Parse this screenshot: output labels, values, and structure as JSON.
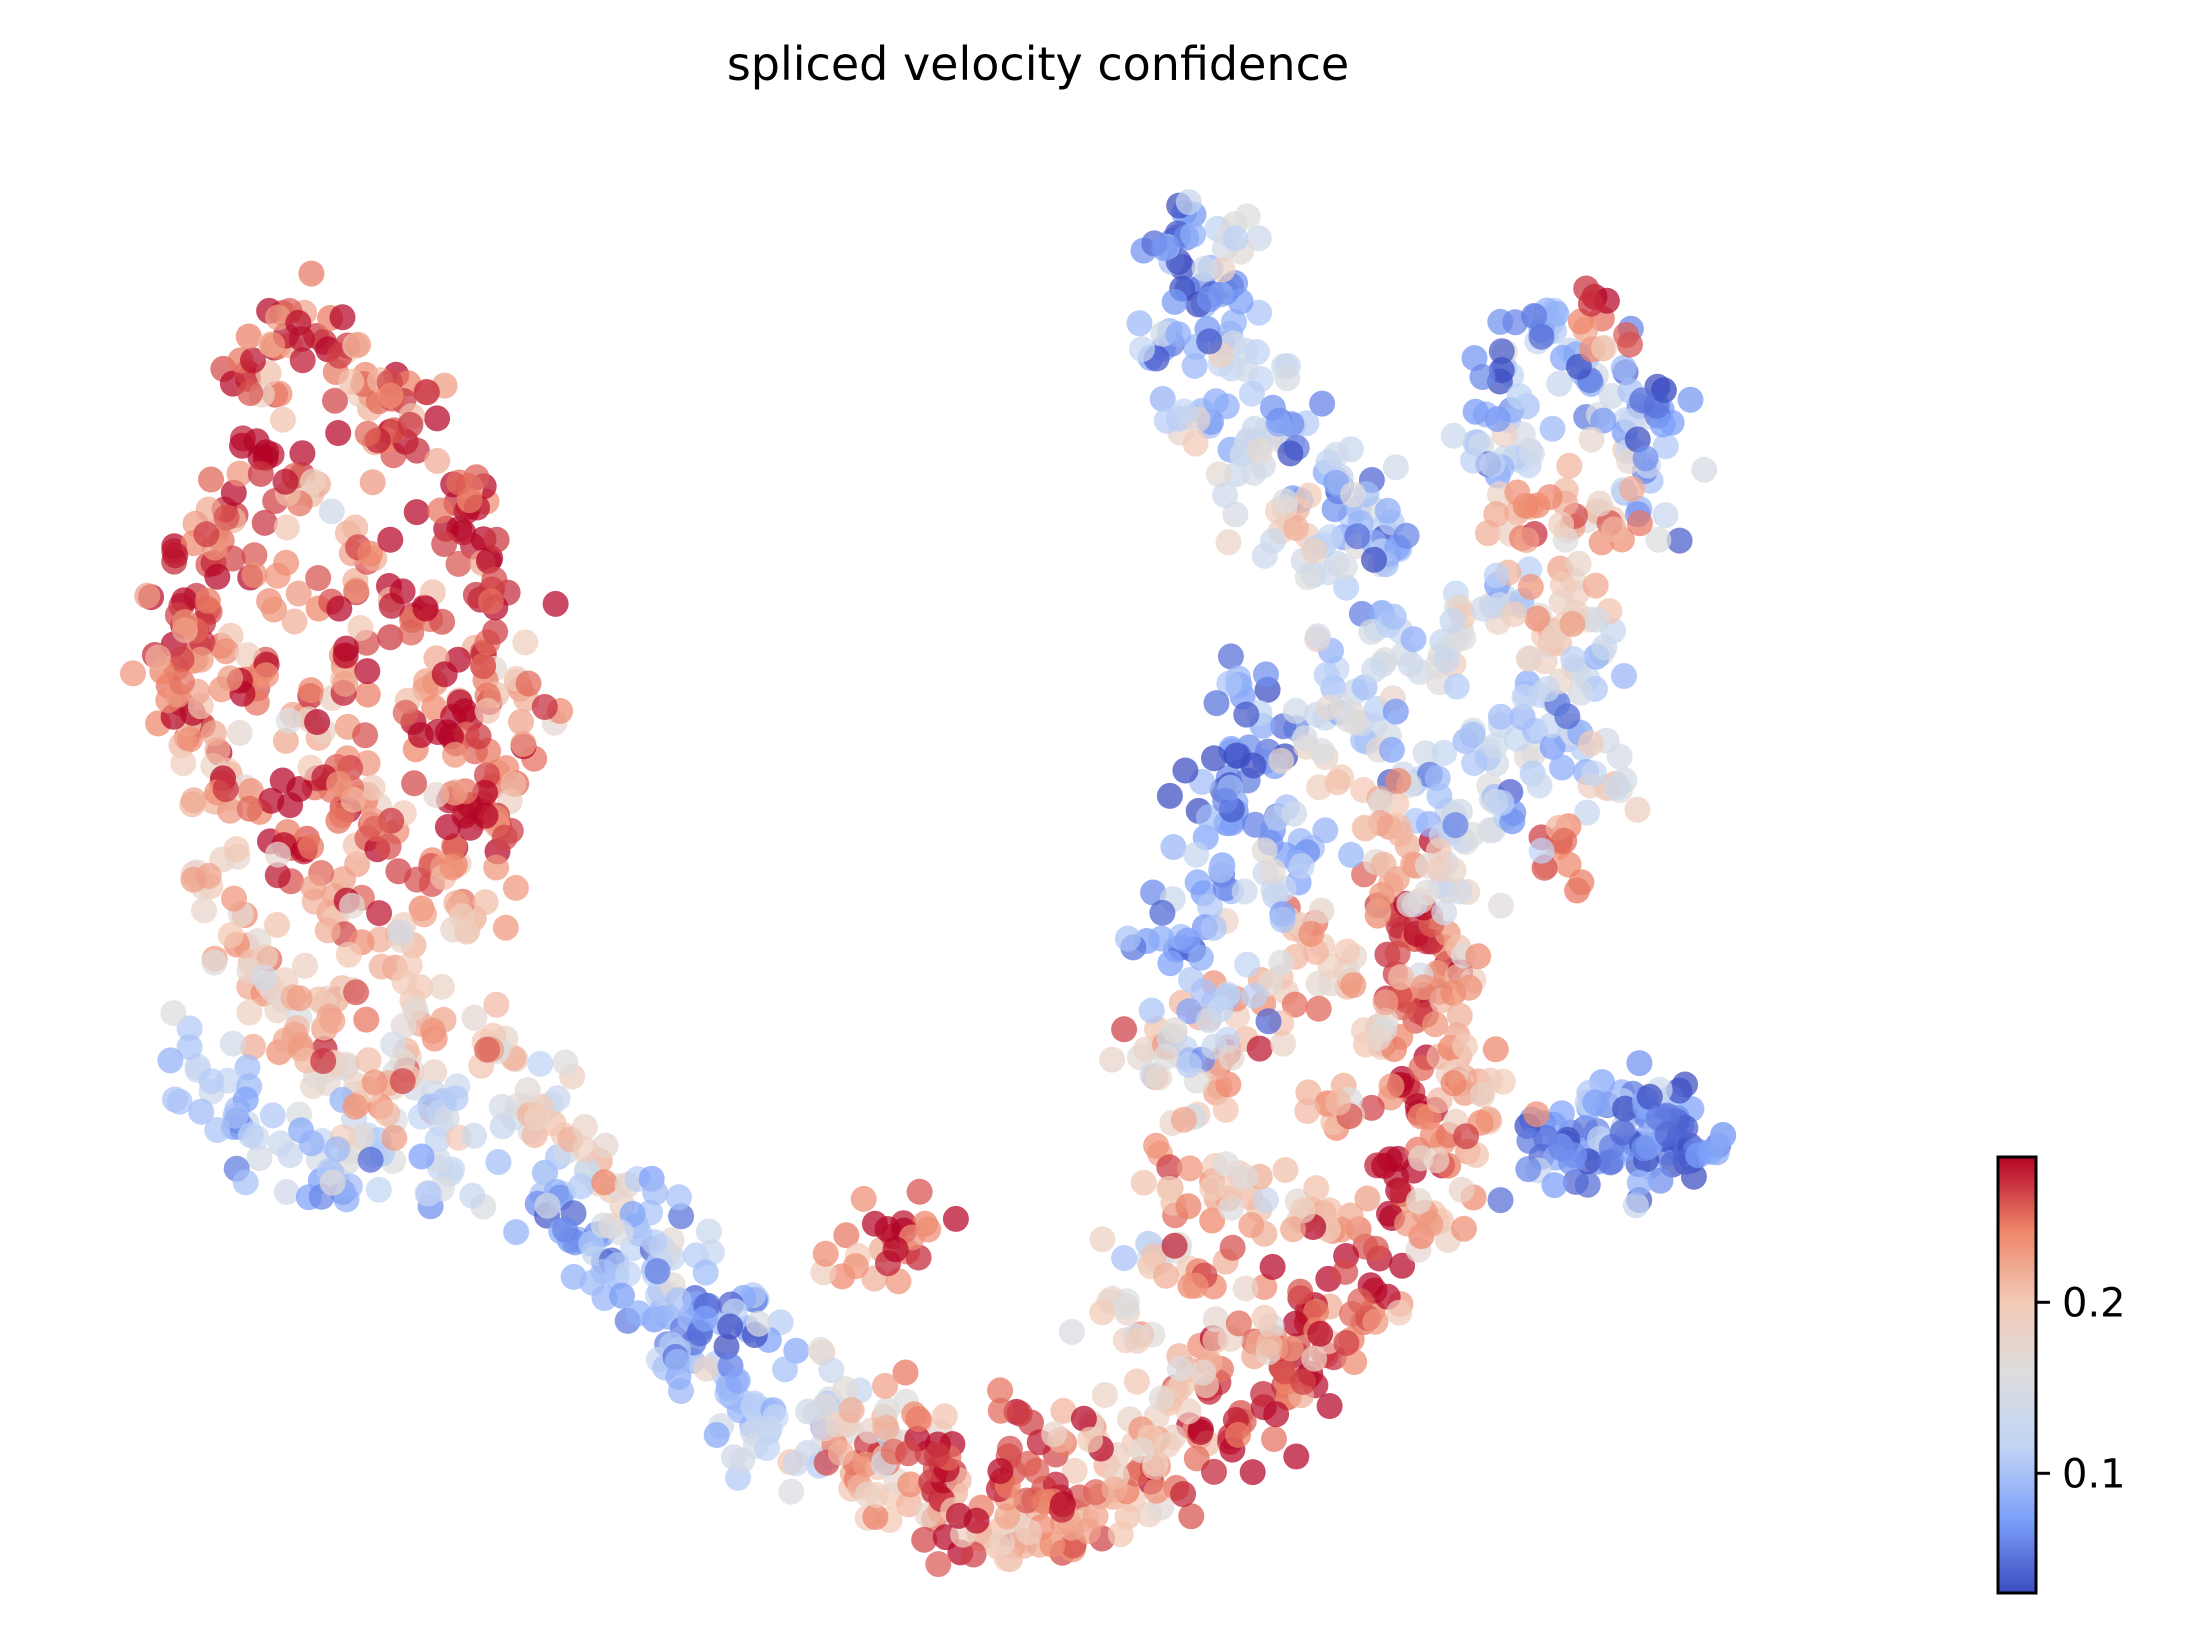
{
  "chart_data": {
    "type": "scatter",
    "title": "spliced velocity confidence",
    "xlabel": "",
    "ylabel": "",
    "axes_visible": false,
    "grid": false,
    "xlim": [
      0,
      100
    ],
    "ylim": [
      0,
      100
    ],
    "colormap": "coolwarm",
    "colorbar": {
      "placement": "bottom-right",
      "range": [
        0.03,
        0.285
      ],
      "ticks": [
        {
          "value": 0.1,
          "label": "0.1"
        },
        {
          "value": 0.2,
          "label": "0.2"
        }
      ],
      "stops": [
        "#3b4cc0",
        "#7b9ff9",
        "#c0d4f5",
        "#dddddd",
        "#f2cbb7",
        "#ee8468",
        "#b40426"
      ]
    },
    "clusters": [
      {
        "name": "",
        "points": [
          [
            3.4,
            68.3,
            0.27
          ],
          [
            4.4,
            59.8,
            0.26
          ],
          [
            5.6,
            65.4,
            0.25
          ],
          [
            6.4,
            74.9,
            0.27
          ],
          [
            8.4,
            79.3,
            0.28
          ],
          [
            9.9,
            69.2,
            0.23
          ],
          [
            11.0,
            58.7,
            0.22
          ],
          [
            12.4,
            63.9,
            0.24
          ],
          [
            13.7,
            71.5,
            0.26
          ],
          [
            15.0,
            80.9,
            0.25
          ],
          [
            16.2,
            67.6,
            0.27
          ],
          [
            17.4,
            60.9,
            0.24
          ],
          [
            18.8,
            73.9,
            0.28
          ],
          [
            20.1,
            64.9,
            0.26
          ],
          [
            21.4,
            56.5,
            0.24
          ],
          [
            7.1,
            84.8,
            0.27
          ],
          [
            9.0,
            89.6,
            0.26
          ],
          [
            11.3,
            87.5,
            0.27
          ],
          [
            13.6,
            85.1,
            0.24
          ],
          [
            15.7,
            83.2,
            0.27
          ],
          [
            2.7,
            62.5,
            0.25
          ],
          [
            6.0,
            56.3,
            0.2
          ],
          [
            7.6,
            62.3,
            0.26
          ],
          [
            12.6,
            54.2,
            0.23
          ],
          [
            18.6,
            58.3,
            0.27
          ],
          [
            20.6,
            69.5,
            0.27
          ],
          [
            22.0,
            62.8,
            0.22
          ],
          [
            19.3,
            77.0,
            0.26
          ],
          [
            10.6,
            76.4,
            0.21
          ],
          [
            4.9,
            71.3,
            0.26
          ]
        ]
      },
      {
        "name": "",
        "points": [
          [
            5.0,
            47.9,
            0.2
          ],
          [
            7.0,
            43.6,
            0.22
          ],
          [
            9.5,
            50.7,
            0.26
          ],
          [
            11.6,
            46.0,
            0.23
          ],
          [
            13.9,
            52.4,
            0.26
          ],
          [
            15.4,
            44.5,
            0.21
          ],
          [
            17.3,
            49.8,
            0.24
          ],
          [
            19.6,
            45.6,
            0.22
          ],
          [
            21.0,
            52.3,
            0.25
          ],
          [
            8.2,
            40.8,
            0.19
          ],
          [
            12.3,
            40.5,
            0.21
          ],
          [
            16.2,
            39.6,
            0.2
          ],
          [
            6.1,
            53.4,
            0.23
          ],
          [
            18.5,
            54.3,
            0.27
          ],
          [
            10.8,
            55.1,
            0.25
          ]
        ]
      },
      {
        "name": "",
        "points": [
          [
            4.3,
            34.8,
            0.12
          ],
          [
            6.5,
            31.7,
            0.1
          ],
          [
            8.9,
            29.2,
            0.13
          ],
          [
            11.5,
            33.6,
            0.17
          ],
          [
            13.7,
            29.8,
            0.12
          ],
          [
            16.0,
            35.5,
            0.19
          ],
          [
            17.8,
            30.6,
            0.13
          ],
          [
            20.2,
            36.6,
            0.2
          ],
          [
            22.6,
            31.8,
            0.14
          ],
          [
            9.8,
            37.6,
            0.21
          ],
          [
            14.9,
            33.6,
            0.22
          ],
          [
            12.0,
            26.7,
            0.11
          ],
          [
            18.4,
            27.3,
            0.12
          ]
        ]
      },
      {
        "name": "",
        "points": [
          [
            23.4,
            25.5,
            0.1
          ],
          [
            25.4,
            22.2,
            0.08
          ],
          [
            27.5,
            19.5,
            0.09
          ],
          [
            29.6,
            16.4,
            0.07
          ],
          [
            31.7,
            13.4,
            0.09
          ],
          [
            33.9,
            10.8,
            0.08
          ],
          [
            35.9,
            8.2,
            0.11
          ],
          [
            38.1,
            6.7,
            0.13
          ],
          [
            24.6,
            29.8,
            0.2
          ],
          [
            26.5,
            26.3,
            0.18
          ],
          [
            30.6,
            20.9,
            0.12
          ],
          [
            34.8,
            15.6,
            0.1
          ],
          [
            39.3,
            10.6,
            0.15
          ],
          [
            28.6,
            23.2,
            0.09
          ],
          [
            32.6,
            17.4,
            0.06
          ]
        ]
      },
      {
        "name": "",
        "points": [
          [
            40.6,
            5.2,
            0.22
          ],
          [
            42.8,
            3.6,
            0.2
          ],
          [
            45.1,
            1.9,
            0.25
          ],
          [
            47.6,
            0.9,
            0.23
          ],
          [
            50.0,
            0.3,
            0.22
          ],
          [
            52.6,
            1.7,
            0.24
          ],
          [
            55.0,
            3.5,
            0.22
          ],
          [
            57.5,
            5.7,
            0.23
          ],
          [
            59.8,
            7.9,
            0.25
          ],
          [
            62.1,
            9.6,
            0.26
          ],
          [
            64.5,
            11.6,
            0.27
          ],
          [
            66.8,
            13.8,
            0.26
          ],
          [
            68.9,
            16.2,
            0.25
          ],
          [
            41.6,
            8.3,
            0.18
          ],
          [
            46.2,
            5.3,
            0.27
          ],
          [
            51.2,
            4.1,
            0.26
          ],
          [
            56.2,
            7.4,
            0.2
          ],
          [
            61.0,
            12.8,
            0.25
          ],
          [
            65.8,
            17.0,
            0.27
          ],
          [
            44.0,
            9.5,
            0.24
          ],
          [
            49.3,
            7.0,
            0.26
          ],
          [
            53.9,
            8.6,
            0.23
          ],
          [
            58.6,
            11.3,
            0.21
          ],
          [
            63.1,
            14.7,
            0.22
          ],
          [
            42.2,
            21.5,
            0.22
          ],
          [
            43.4,
            23.4,
            0.28
          ]
        ]
      },
      {
        "name": "",
        "points": [
          [
            69.0,
            21.7,
            0.26
          ],
          [
            70.7,
            26.8,
            0.28
          ],
          [
            71.6,
            32.9,
            0.27
          ],
          [
            72.0,
            38.8,
            0.28
          ],
          [
            71.0,
            44.4,
            0.27
          ],
          [
            73.3,
            29.3,
            0.23
          ],
          [
            74.2,
            35.6,
            0.22
          ],
          [
            69.8,
            37.3,
            0.2
          ],
          [
            67.6,
            31.1,
            0.21
          ],
          [
            72.4,
            43.9,
            0.27
          ],
          [
            70.4,
            48.0,
            0.22
          ],
          [
            74.1,
            41.3,
            0.21
          ],
          [
            66.0,
            24.4,
            0.22
          ],
          [
            73.0,
            23.5,
            0.2
          ],
          [
            68.0,
            40.6,
            0.21
          ]
        ]
      },
      {
        "name": "",
        "points": [
          [
            57.0,
            20.7,
            0.15
          ],
          [
            58.2,
            26.0,
            0.22
          ],
          [
            59.7,
            31.3,
            0.2
          ],
          [
            61.4,
            36.2,
            0.23
          ],
          [
            63.2,
            41.1,
            0.22
          ],
          [
            65.1,
            45.2,
            0.2
          ],
          [
            55.8,
            16.9,
            0.18
          ],
          [
            57.6,
            36.3,
            0.19
          ],
          [
            62.6,
            25.3,
            0.21
          ],
          [
            60.6,
            18.8,
            0.24
          ]
        ]
      },
      {
        "name": "",
        "points": [
          [
            61.6,
            52.7,
            0.06
          ],
          [
            63.6,
            57.7,
            0.05
          ],
          [
            62.2,
            61.7,
            0.07
          ],
          [
            59.7,
            48.2,
            0.08
          ],
          [
            58.5,
            43.3,
            0.07
          ],
          [
            60.6,
            39.5,
            0.1
          ],
          [
            61.1,
            54.9,
            0.04
          ],
          [
            65.4,
            51.2,
            0.09
          ],
          [
            64.0,
            47.2,
            0.11
          ],
          [
            59.0,
            36.1,
            0.12
          ]
        ]
      },
      {
        "name": "",
        "points": [
          [
            67.4,
            63.7,
            0.12
          ],
          [
            69.5,
            59.6,
            0.13
          ],
          [
            71.7,
            55.4,
            0.1
          ],
          [
            73.8,
            52.0,
            0.12
          ],
          [
            75.8,
            57.8,
            0.14
          ],
          [
            77.9,
            61.9,
            0.12
          ],
          [
            80.2,
            58.6,
            0.1
          ],
          [
            82.3,
            55.1,
            0.16
          ],
          [
            69.9,
            67.8,
            0.11
          ],
          [
            72.0,
            63.5,
            0.14
          ],
          [
            74.3,
            66.5,
            0.15
          ],
          [
            76.6,
            69.1,
            0.12
          ],
          [
            78.9,
            66.1,
            0.2
          ],
          [
            81.3,
            63.0,
            0.13
          ],
          [
            66.8,
            57.3,
            0.18
          ],
          [
            70.8,
            52.3,
            0.21
          ],
          [
            73.6,
            47.6,
            0.17
          ],
          [
            79.7,
            50.8,
            0.24
          ],
          [
            76.8,
            52.9,
            0.11
          ],
          [
            80.7,
            69.2,
            0.19
          ]
        ]
      },
      {
        "name": "",
        "points": [
          [
            58.6,
            95.1,
            0.05
          ],
          [
            60.0,
            91.6,
            0.06
          ],
          [
            61.5,
            88.1,
            0.09
          ],
          [
            63.2,
            84.8,
            0.12
          ],
          [
            65.0,
            81.4,
            0.1
          ],
          [
            66.8,
            78.0,
            0.08
          ],
          [
            68.2,
            74.8,
            0.11
          ],
          [
            57.8,
            87.0,
            0.07
          ],
          [
            59.4,
            82.1,
            0.12
          ],
          [
            62.2,
            79.3,
            0.15
          ],
          [
            64.8,
            74.4,
            0.2
          ],
          [
            67.4,
            71.4,
            0.13
          ],
          [
            70.3,
            72.1,
            0.06
          ],
          [
            61.2,
            94.3,
            0.14
          ]
        ]
      },
      {
        "name": "",
        "points": [
          [
            76.7,
            85.6,
            0.08
          ],
          [
            79.0,
            88.1,
            0.1
          ],
          [
            81.3,
            84.8,
            0.09
          ],
          [
            83.4,
            81.8,
            0.12
          ],
          [
            84.8,
            77.4,
            0.1
          ],
          [
            78.1,
            79.6,
            0.13
          ],
          [
            80.1,
            76.7,
            0.21
          ],
          [
            82.7,
            74.6,
            0.2
          ],
          [
            75.2,
            80.2,
            0.11
          ],
          [
            77.4,
            75.1,
            0.22
          ],
          [
            82.1,
            89.2,
            0.25
          ],
          [
            85.4,
            82.6,
            0.07
          ]
        ]
      },
      {
        "name": "",
        "points": [
          [
            80.4,
            30.0,
            0.06
          ],
          [
            82.2,
            28.8,
            0.05
          ],
          [
            83.9,
            29.2,
            0.04
          ],
          [
            85.7,
            28.5,
            0.05
          ],
          [
            86.5,
            30.5,
            0.06
          ],
          [
            81.4,
            31.8,
            0.07
          ],
          [
            84.6,
            31.2,
            0.06
          ],
          [
            79.0,
            29.6,
            0.05
          ],
          [
            87.3,
            28.7,
            0.06
          ],
          [
            75.4,
            32.9,
            0.22
          ]
        ]
      }
    ]
  }
}
